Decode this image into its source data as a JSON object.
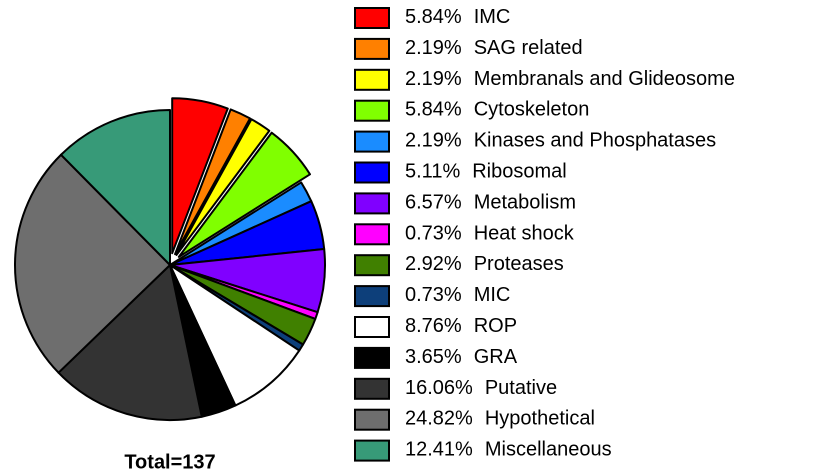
{
  "chart_data": {
    "type": "pie",
    "annotation": "Total=137",
    "categories": [
      "IMC",
      "SAG related",
      "Membranals and Glideosome",
      "Cytoskeleton",
      "Kinases and Phosphatases",
      "Ribosomal",
      "Metabolism",
      "Heat shock",
      "Proteases",
      "MIC",
      "ROP",
      "GRA",
      "Putative",
      "Hypothetical",
      "Miscellaneous"
    ],
    "values": [
      5.84,
      2.19,
      2.19,
      5.84,
      2.19,
      5.11,
      6.57,
      0.73,
      2.92,
      0.73,
      8.76,
      3.65,
      16.06,
      24.82,
      12.41
    ],
    "value_labels": [
      "5.84%",
      "2.19%",
      "2.19%",
      "5.84%",
      "2.19%",
      "5.11%",
      "6.57%",
      "0.73%",
      "2.92%",
      "0.73%",
      "8.76%",
      "3.65%",
      "16.06%",
      "24.82%",
      "12.41%"
    ],
    "colors": [
      "#ff0000",
      "#ff8000",
      "#ffff00",
      "#80ff00",
      "#1a8cff",
      "#0000ff",
      "#8000ff",
      "#ff00ff",
      "#408000",
      "#0d3f7a",
      "#ffffff",
      "#000000",
      "#333333",
      "#6e6e6e",
      "#379a78"
    ],
    "explode": [
      true,
      true,
      true,
      true,
      false,
      false,
      false,
      false,
      false,
      false,
      false,
      false,
      false,
      false,
      false
    ],
    "legend": "right"
  }
}
